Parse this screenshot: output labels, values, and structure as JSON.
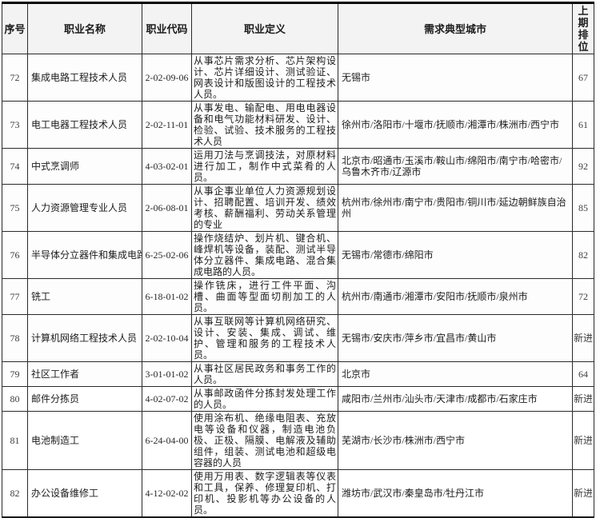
{
  "table": {
    "headers": [
      "序号",
      "职业名称",
      "职业代码",
      "职业定义",
      "需求典型城市",
      "上期排位"
    ],
    "rows": [
      {
        "no": "72",
        "name": "集成电路工程技术人员",
        "code": "2-02-09-06",
        "definition": "从事芯片需求分析、芯片架构设计、芯片详细设计、测试验证、网表设计和版图设计的工程技术人员。",
        "cities": "无锡市",
        "rank": "67"
      },
      {
        "no": "73",
        "name": "电工电器工程技术人员",
        "code": "2-02-11-01",
        "definition": "从事发电、输配电、用电电器设备和电气功能材料研发、设计、检验、试验、技术服务的工程技术人员",
        "cities": "徐州市/洛阳市/十堰市/抚顺市/湘潭市/株洲市/西宁市",
        "rank": "61"
      },
      {
        "no": "74",
        "name": "中式烹调师",
        "code": "4-03-02-01",
        "definition": "运用刀法与烹调技法，对原材料进行加工，制作中式菜肴的人员。",
        "cities": "北京市/昭通市/玉溪市/鞍山市/绵阳市/南宁市/哈密市/乌鲁木齐市/辽源市",
        "rank": "92"
      },
      {
        "no": "75",
        "name": "人力资源管理专业人员",
        "code": "2-06-08-01",
        "definition": "从事企事业单位人力资源规划设计、招聘配置、培训开发、绩效考核、薪酬福利、劳动关系管理的专业",
        "cities": "杭州市/徐州市/南宁市/贵阳市/铜川市/延边朝鲜族自治州",
        "rank": "85"
      },
      {
        "no": "76",
        "name": "半导体分立器件和集成电路装",
        "code": "6-25-02-06",
        "definition": "操作烧结炉、划片机、键合机、峰焊机等设备，装配、测试半导体分立器件、集成电路、混合集成电路的人员。",
        "cities": "无锡市/常德市/绵阳市",
        "rank": "82"
      },
      {
        "no": "77",
        "name": "铣工",
        "code": "6-18-01-02",
        "definition": "操作铣床，进行工件平面、沟槽、曲面等型面切削加工的人员。",
        "cities": "杭州市/南通市/湘潭市/安阳市/抚顺市/泉州市",
        "rank": "72"
      },
      {
        "no": "78",
        "name": "计算机网络工程技术人员",
        "code": "2-02-10-04",
        "definition": "从事互联网等计算机网络研究、设计、安装、集成、调试、维护、管理和服务的工程技术人员。",
        "cities": "无锡市/安庆市/萍乡市/宜昌市/黄山市",
        "rank": "新进"
      },
      {
        "no": "79",
        "name": "社区工作者",
        "code": "3-01-01-02",
        "definition": "从事社区居民政务和事务工作的人员。",
        "cities": "北京市",
        "rank": "64"
      },
      {
        "no": "80",
        "name": "邮件分拣员",
        "code": "4-02-07-02",
        "definition": "从事邮政函件分拣封发处理工作的人员。",
        "cities": "咸阳市/兰州市/汕头市/天津市/成都市/石家庄市",
        "rank": "新进"
      },
      {
        "no": "81",
        "name": "电池制造工",
        "code": "6-24-04-00",
        "definition": "使用涂布机、绝缘电阻表、充放电等设备和仪器，制造电池负极、正极、隔膜、电解液及辅助组件，组装、测试电池和超级电容器的人员",
        "cities": "芜湖市/长沙市/株洲市/西宁市",
        "rank": "新进"
      },
      {
        "no": "82",
        "name": "办公设备维修工",
        "code": "4-12-02-02",
        "definition": "使用万用表、数字逻辑表等仪表和工具，保养、修理复印机、打印机、投影机等办公设备的人员。",
        "cities": "潍坊市/武汉市/秦皇岛市/牡丹江市",
        "rank": "新进"
      }
    ]
  }
}
